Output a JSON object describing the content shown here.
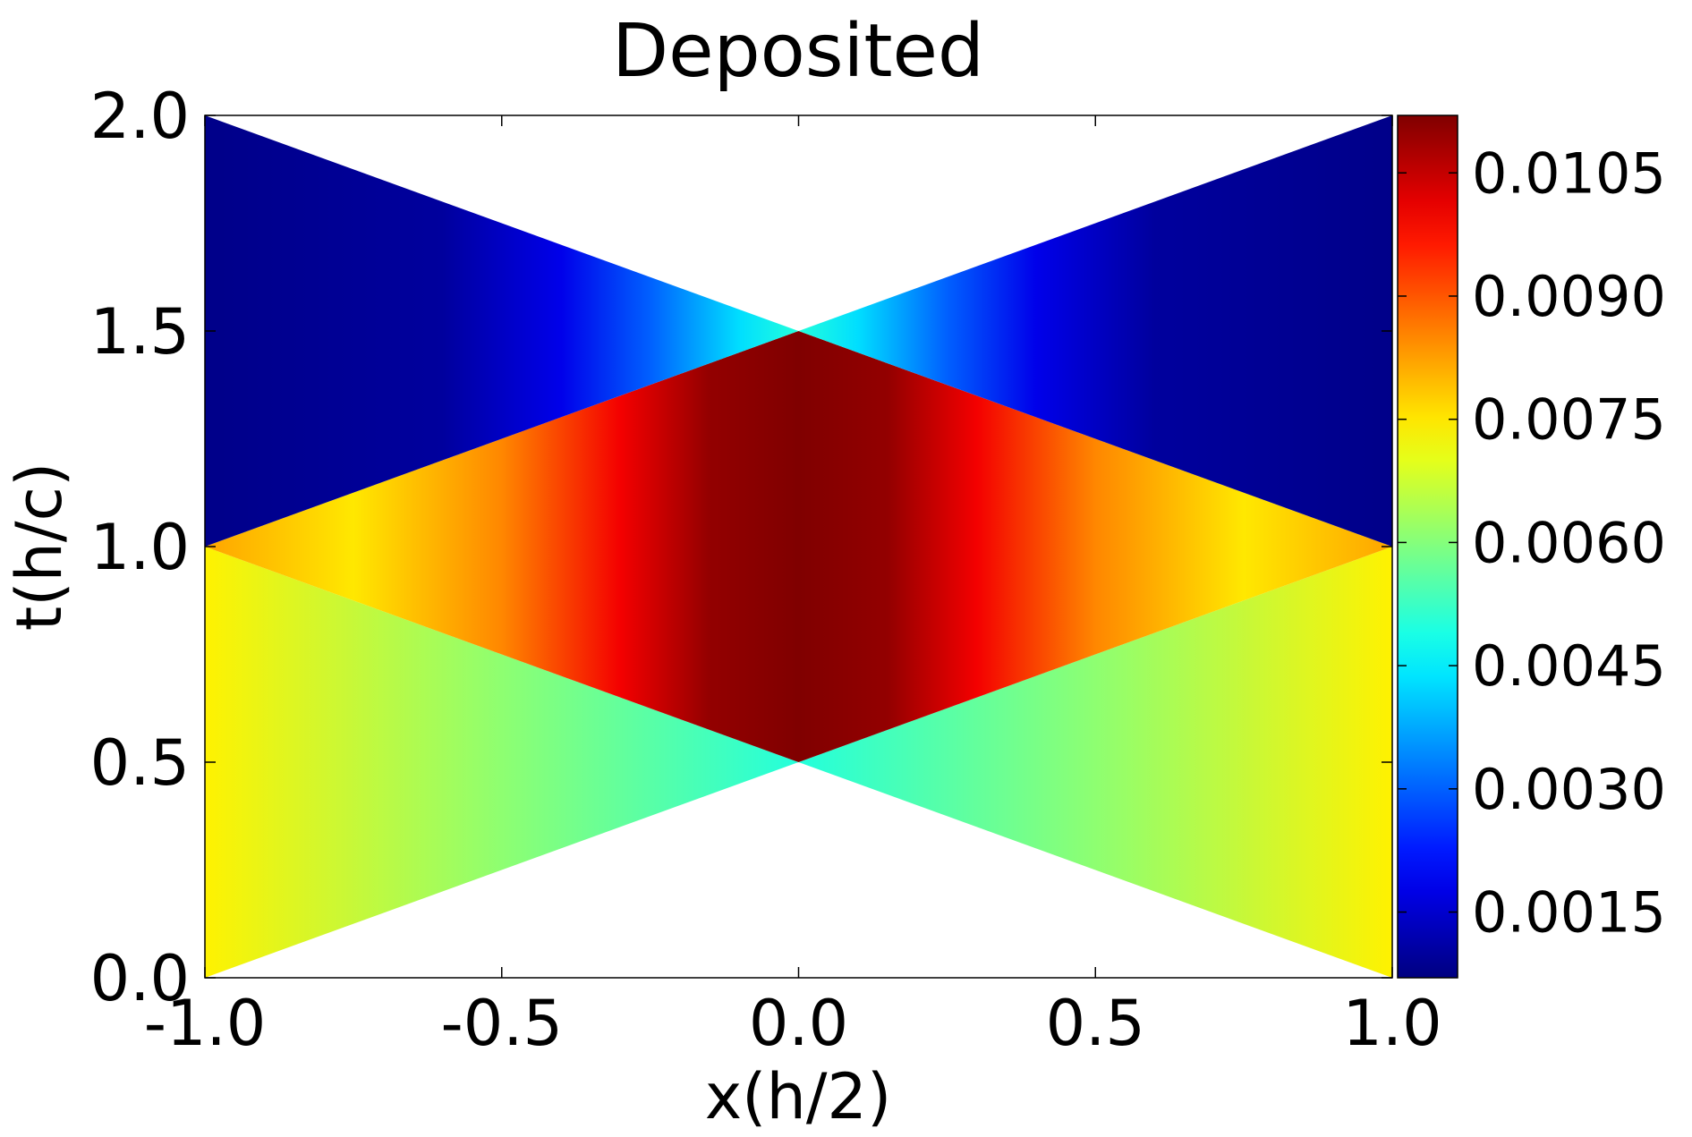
{
  "chart_data": {
    "type": "heatmap",
    "title": "Deposited",
    "xlabel": "x(h/2)",
    "ylabel": "t(h/c)",
    "xlim": [
      -1.0,
      1.0
    ],
    "ylim": [
      0.0,
      2.0
    ],
    "x_ticks": [
      "-1.0",
      "-0.5",
      "0.0",
      "0.5",
      "1.0"
    ],
    "y_ticks": [
      "0.0",
      "0.5",
      "1.0",
      "1.5",
      "2.0"
    ],
    "colorbar": {
      "colormap": "jet",
      "range": [
        0.0007,
        0.0112
      ],
      "ticks": [
        "0.0015",
        "0.0030",
        "0.0045",
        "0.0060",
        "0.0075",
        "0.0090",
        "0.0105"
      ]
    },
    "regions": [
      {
        "name": "bottom-left",
        "vertices": [
          [
            -1.0,
            0.0
          ],
          [
            -1.0,
            1.0
          ],
          [
            0.0,
            0.5
          ]
        ],
        "x_profile": [
          [
            -1.0,
            0.0074
          ],
          [
            -0.5,
            0.0061
          ],
          [
            0.0,
            0.005
          ]
        ]
      },
      {
        "name": "bottom-right",
        "vertices": [
          [
            1.0,
            0.0
          ],
          [
            1.0,
            1.0
          ],
          [
            0.0,
            0.5
          ]
        ],
        "x_profile": [
          [
            0.0,
            0.005
          ],
          [
            0.5,
            0.0061
          ],
          [
            1.0,
            0.0074
          ]
        ]
      },
      {
        "name": "center-diamond",
        "vertices": [
          [
            -1.0,
            1.0
          ],
          [
            0.0,
            0.5
          ],
          [
            1.0,
            1.0
          ],
          [
            0.0,
            1.5
          ]
        ],
        "x_profile": [
          [
            -1.0,
            0.0082
          ],
          [
            -0.75,
            0.0075
          ],
          [
            -0.5,
            0.0085
          ],
          [
            -0.3,
            0.01
          ],
          [
            -0.15,
            0.011
          ],
          [
            0.0,
            0.0112
          ],
          [
            0.15,
            0.011
          ],
          [
            0.3,
            0.01
          ],
          [
            0.5,
            0.0085
          ],
          [
            0.75,
            0.0075
          ],
          [
            1.0,
            0.0082
          ]
        ]
      },
      {
        "name": "top-left",
        "vertices": [
          [
            -1.0,
            1.0
          ],
          [
            -1.0,
            2.0
          ],
          [
            0.0,
            1.5
          ]
        ],
        "x_profile": [
          [
            -1.0,
            0.0008
          ],
          [
            -0.6,
            0.001
          ],
          [
            -0.4,
            0.0018
          ],
          [
            -0.25,
            0.003
          ],
          [
            -0.1,
            0.0043
          ],
          [
            0.0,
            0.005
          ]
        ]
      },
      {
        "name": "top-right",
        "vertices": [
          [
            1.0,
            1.0
          ],
          [
            1.0,
            2.0
          ],
          [
            0.0,
            1.5
          ]
        ],
        "x_profile": [
          [
            0.0,
            0.005
          ],
          [
            0.1,
            0.0043
          ],
          [
            0.25,
            0.003
          ],
          [
            0.4,
            0.0018
          ],
          [
            0.6,
            0.001
          ],
          [
            1.0,
            0.0008
          ]
        ]
      }
    ]
  }
}
